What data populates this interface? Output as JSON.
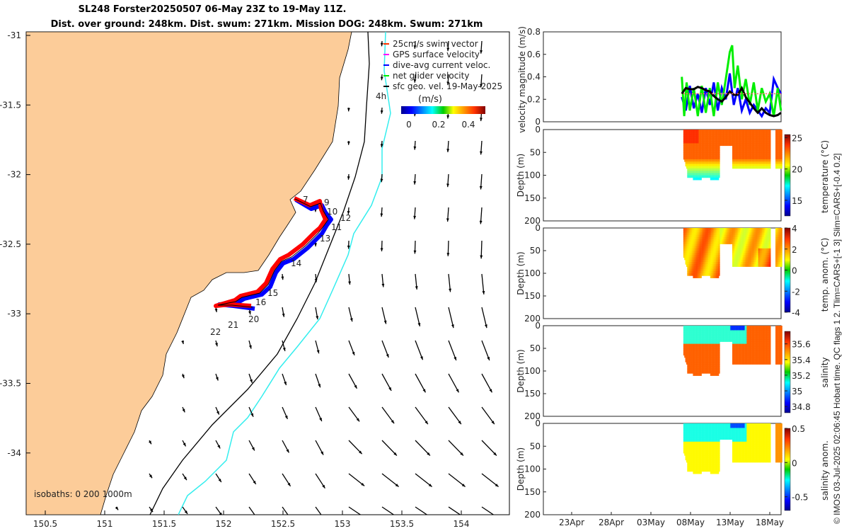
{
  "title": {
    "line1": "SL248 Forster20250507 06-May 23Z to 19-May 11Z.",
    "line2": "Dist. over ground: 248km. Dist. swum: 271km. Mission DOG: 248km. Swum: 271km"
  },
  "colors": {
    "land": "#fccc99",
    "track_red": "#ff0000",
    "track_blue": "#0000ff",
    "iso200": "#000000",
    "iso1000": "#33eeee",
    "net": "#00ee00"
  },
  "map": {
    "lon_ticks": [
      "150.5",
      "151",
      "151.5",
      "152",
      "152.5",
      "153",
      "153.5",
      "154"
    ],
    "lat_ticks": [
      "-31",
      "-31.5",
      "-32",
      "-32.5",
      "-33",
      "-33.5",
      "-34"
    ],
    "legend": [
      {
        "label": "25cm/s swim vector",
        "color": "#ff3300"
      },
      {
        "label": "GPS surface velocity",
        "color": "#ff00ff"
      },
      {
        "label": "dive-avg current veloc.",
        "color": "#0000ff"
      },
      {
        "label": "net glider velocity",
        "color": "#00ee00"
      },
      {
        "label": "sfc geo. vel. 19-May-2025",
        "color": "#000000"
      }
    ],
    "colorbar_label": "(m/s)",
    "colorbar_ticks": [
      "0",
      "0.2",
      "0.4"
    ],
    "time_marker": "4h",
    "waypoints": [
      "7",
      "9",
      "10",
      "12",
      "11",
      "13",
      "14",
      "15",
      "16",
      "20",
      "21",
      "22"
    ],
    "isobaths_label": "isobaths: 0   200  1000m"
  },
  "chart_data": [
    {
      "type": "line",
      "title": "",
      "ylabel": "velocity magnitude (m/s)",
      "ylim": [
        0,
        0.8
      ],
      "y_ticks": [
        "0",
        "0.2",
        "0.4",
        "0.6",
        "0.8"
      ],
      "x_ticks": [
        "23Apr",
        "28Apr",
        "03May",
        "08May",
        "13May",
        "18May"
      ],
      "series": [
        {
          "name": "dive-avg current veloc.",
          "color": "#0000ff",
          "x_day_may": [
            7,
            7.5,
            8,
            8.5,
            9,
            9.5,
            10,
            10.5,
            11,
            11.5,
            12,
            12.5,
            13,
            13.5,
            14,
            14.5,
            15,
            15.5,
            16,
            16.5,
            17,
            17.5,
            18,
            18.5,
            19,
            19.4
          ],
          "values": [
            0.22,
            0.1,
            0.32,
            0.12,
            0.25,
            0.08,
            0.3,
            0.15,
            0.35,
            0.1,
            0.3,
            0.2,
            0.43,
            0.15,
            0.3,
            0.1,
            0.2,
            0.08,
            0.15,
            0.1,
            0.05,
            0.12,
            0.08,
            0.38,
            0.3,
            0.25
          ]
        },
        {
          "name": "net glider velocity",
          "color": "#00ee00",
          "x_day_may": [
            7,
            7.3,
            7.6,
            8,
            8.5,
            9,
            9.5,
            10,
            10.5,
            11,
            11.5,
            12,
            12.5,
            13,
            13.3,
            13.6,
            14,
            14.5,
            15,
            15.5,
            16,
            16.5,
            17,
            17.5,
            18,
            18.5,
            19,
            19.4
          ],
          "values": [
            0.4,
            0.05,
            0.35,
            0.1,
            0.3,
            0.05,
            0.32,
            0.08,
            0.3,
            0.05,
            0.35,
            0.15,
            0.38,
            0.62,
            0.68,
            0.3,
            0.5,
            0.2,
            0.38,
            0.15,
            0.35,
            0.1,
            0.3,
            0.18,
            0.25,
            0.05,
            0.3,
            0.1
          ]
        },
        {
          "name": "sfc geo. vel.",
          "color": "#000000",
          "x_day_may": [
            7,
            7.5,
            8,
            8.5,
            9,
            9.5,
            10,
            10.5,
            11,
            11.5,
            12,
            12.5,
            13,
            13.5,
            14,
            14.5,
            15,
            15.5,
            16,
            16.5,
            17,
            17.5,
            18,
            18.5,
            19,
            19.4
          ],
          "values": [
            0.25,
            0.3,
            0.29,
            0.29,
            0.31,
            0.3,
            0.28,
            0.27,
            0.23,
            0.2,
            0.18,
            0.22,
            0.27,
            0.24,
            0.24,
            0.3,
            0.22,
            0.17,
            0.12,
            0.08,
            0.12,
            0.08,
            0.06,
            0.05,
            0.06,
            0.08
          ]
        },
        {
          "name": "25cm/s swim",
          "color": "#ff6666",
          "x_day_may": [
            7.2,
            19.4
          ],
          "values": [
            0.25,
            0.25
          ]
        }
      ]
    },
    {
      "type": "heatmap",
      "ylabel": "Depth (m)",
      "ylim": [
        200,
        0
      ],
      "y_ticks": [
        "0",
        "50",
        "100",
        "150",
        "200"
      ],
      "colorbar_label": "temperature (°C)",
      "colorbar_ticks": [
        "25",
        "20",
        "15"
      ],
      "clim": [
        12.5,
        25.5
      ]
    },
    {
      "type": "heatmap",
      "ylabel": "Depth (m)",
      "ylim": [
        200,
        0
      ],
      "y_ticks": [
        "0",
        "50",
        "100",
        "150",
        "200"
      ],
      "colorbar_label": "temp. anom. (°C)",
      "colorbar_ticks": [
        "4",
        "2",
        "0",
        "-2",
        "-4"
      ],
      "clim": [
        -4,
        4
      ]
    },
    {
      "type": "heatmap",
      "ylabel": "Depth (m)",
      "ylim": [
        200,
        0
      ],
      "y_ticks": [
        "0",
        "50",
        "100",
        "150",
        "200"
      ],
      "colorbar_label": "salinity",
      "colorbar_ticks": [
        "35.6",
        "35.4",
        "35.2",
        "35",
        "34.8"
      ],
      "clim": [
        34.72,
        35.76
      ]
    },
    {
      "type": "heatmap",
      "ylabel": "Depth (m)",
      "ylim": [
        200,
        0
      ],
      "y_ticks": [
        "0",
        "50",
        "100",
        "150",
        "200"
      ],
      "colorbar_label": "salinity anom.",
      "colorbar_ticks": [
        "0.5",
        "0",
        "-0.5"
      ],
      "clim": [
        -0.7,
        0.5
      ]
    }
  ],
  "footer": "© IMOS 03-Jul-2025 02:06:45 Hobart time. QC flags 1  2. Tlim=CARS+[-1 3] Slim=CARS+[-0.4 0.2]"
}
